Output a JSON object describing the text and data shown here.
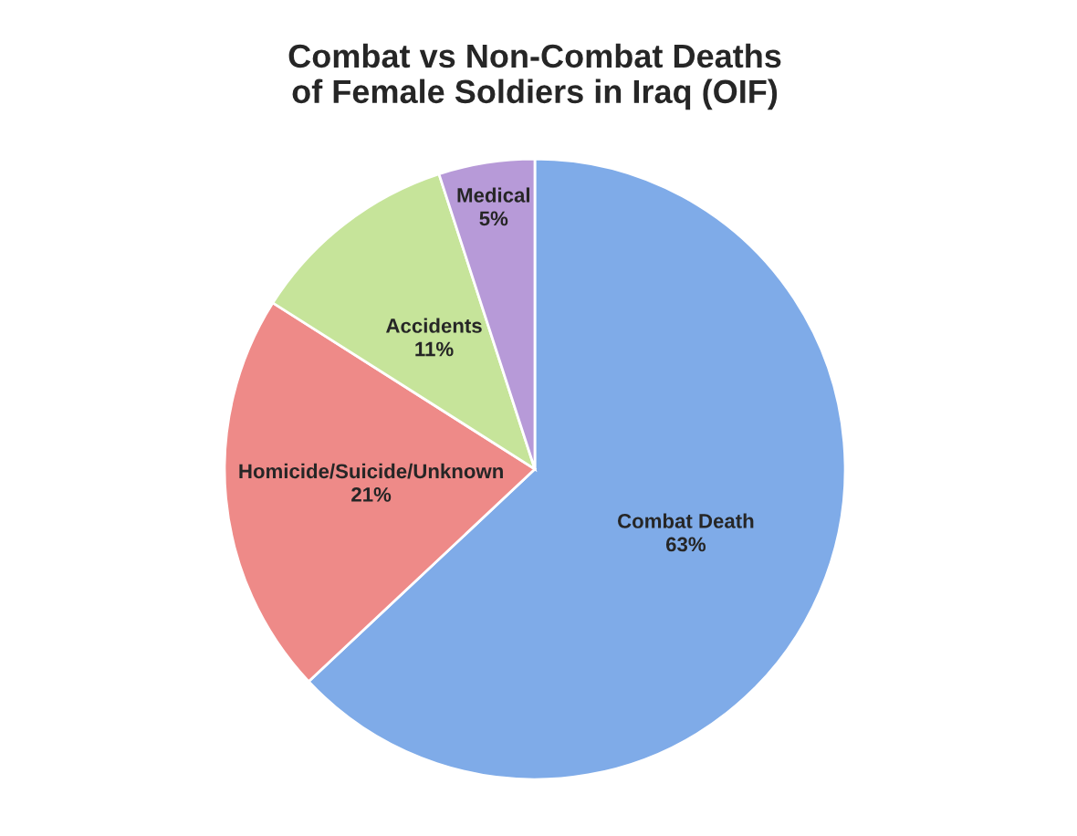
{
  "chart_data": {
    "type": "pie",
    "title": "Combat vs Non-Combat Deaths\nof Female Soldiers in Iraq (OIF)",
    "categories": [
      "Combat Death",
      "Homicide/Suicide/Unknown",
      "Accidents",
      "Medical"
    ],
    "values": [
      63,
      21,
      11,
      5
    ],
    "colors": [
      "#7fabe8",
      "#ee8a88",
      "#c6e49a",
      "#b79ad8"
    ],
    "value_labels": [
      "63%",
      "21%",
      "11%",
      "5%"
    ],
    "legend": false
  }
}
